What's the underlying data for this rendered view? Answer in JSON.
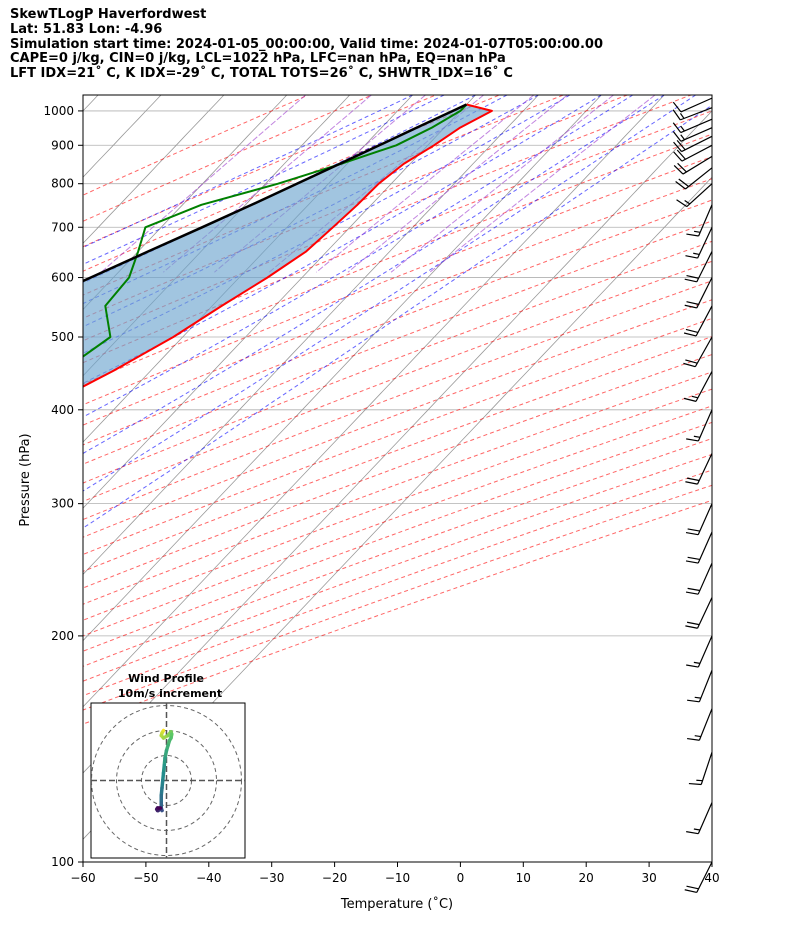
{
  "header": {
    "line1": "SkewTLogP Haverfordwest",
    "line2": "Lat: 51.83   Lon: -4.96",
    "line3": "Simulation start time: 2024-01-05_00:00:00, Valid time: 2024-01-07T05:00:00.00",
    "line4": "CAPE=0 j/kg, CIN=0 j/kg, LCL=1022 hPa, LFC=nan hPa, EQ=nan hPa",
    "line5": "LFT IDX=21˚ C, K IDX=-29˚ C, TOTAL TOTS=26˚ C, SHWTR_IDX=16˚ C"
  },
  "chart_data": {
    "type": "skewt",
    "title": "SkewTLogP Haverfordwest",
    "xlabel": "Temperature (˚C)",
    "ylabel": "Pressure (hPa)",
    "xlim": [
      -60,
      40
    ],
    "ylim": [
      1050,
      100
    ],
    "x_ticks": [
      -60,
      -50,
      -40,
      -30,
      -20,
      -10,
      0,
      10,
      20,
      30,
      40
    ],
    "x_tick_labels": [
      "−60",
      "−50",
      "−40",
      "−30",
      "−20",
      "−10",
      "0",
      "10",
      "20",
      "30",
      "40"
    ],
    "y_ticks": [
      1000,
      900,
      800,
      700,
      600,
      500,
      400,
      300,
      200,
      100
    ],
    "y_tick_labels": [
      "1000",
      "900",
      "800",
      "700",
      "600",
      "500",
      "400",
      "300",
      "200",
      "100"
    ],
    "grid": true,
    "colors": {
      "temperature": "#ff0000",
      "dewpoint": "#008000",
      "parcel": "#000000",
      "cape_fill": "#6fa6cf",
      "dry_adiabat": "#ff0000",
      "moist_adiabat": "#0000ff",
      "isotherm": "#999999",
      "mixing_ratio": "#9933cc"
    },
    "series": [
      {
        "name": "Temperature",
        "p": [
          1020,
          1000,
          950,
          900,
          850,
          800,
          750,
          700,
          650,
          600,
          550,
          500,
          450,
          400,
          350,
          300,
          275,
          250,
          225,
          200,
          180,
          160,
          150,
          140,
          130,
          120,
          110,
          100
        ],
        "t": [
          0.0,
          5.0,
          2.5,
          1.0,
          -1.0,
          -2.0,
          -2.2,
          -2.7,
          -3.3,
          -5.5,
          -8.5,
          -11.5,
          -16.0,
          -22.0,
          -28.0,
          -36.0,
          -41.0,
          -49.0,
          -55.0,
          -61.0,
          -66.0,
          -71.0,
          -73.0,
          -75.0,
          -76.0,
          -77.0,
          -79.0,
          -81.0
        ]
      },
      {
        "name": "Dewpoint",
        "p": [
          1020,
          1000,
          950,
          900,
          850,
          800,
          750,
          700,
          650,
          600,
          550,
          500,
          450,
          400,
          350,
          300,
          250,
          220,
          200,
          180,
          165,
          150,
          130,
          115,
          100
        ],
        "t": [
          0.0,
          0.0,
          -2.0,
          -5.0,
          -11.0,
          -18.0,
          -27.0,
          -32.5,
          -30.0,
          -27.5,
          -27.0,
          -21.5,
          -24.0,
          -29.0,
          -34.5,
          -42.5,
          -53.0,
          -62.0,
          -64.5,
          -70.0,
          -73.0,
          -80.0,
          -85.0,
          -88.5,
          -91.5
        ]
      },
      {
        "name": "Parcel",
        "p": [
          1020,
          1000,
          950,
          900,
          850,
          800,
          750,
          700,
          650,
          600,
          550,
          500,
          450,
          400,
          350,
          300,
          250,
          200,
          150,
          100
        ],
        "t": [
          0.0,
          -1.2,
          -4.4,
          -7.7,
          -11.2,
          -15.0,
          -19.0,
          -23.5,
          -28.4,
          -33.6,
          -39.3,
          -45.6,
          -52.5,
          -60.2,
          -68.8,
          -78.5,
          -89.8,
          -103.0,
          -118.6,
          -138.0
        ]
      }
    ],
    "wind_barbs": {
      "p": [
        1040,
        1010,
        975,
        950,
        925,
        900,
        870,
        840,
        800,
        750,
        700,
        650,
        600,
        550,
        500,
        450,
        400,
        350,
        300,
        275,
        250,
        225,
        200,
        180,
        160,
        140,
        120,
        100
      ],
      "u_kt": [
        9,
        13,
        14,
        16,
        18,
        19,
        18,
        15,
        11,
        6,
        7,
        9,
        9,
        9,
        9,
        8,
        7,
        8,
        8,
        8,
        8,
        8,
        7,
        6,
        6,
        5,
        7,
        9
      ],
      "v_kt": [
        4,
        5,
        6,
        7,
        9,
        10,
        11,
        12,
        10,
        14,
        15,
        18,
        18,
        17,
        16,
        15,
        16,
        17,
        18,
        18,
        18,
        17,
        16,
        15,
        15,
        15,
        16,
        18
      ]
    },
    "hodograph": {
      "title": "Wind Profile",
      "subtitle": "10m/s increment",
      "ring_increment_ms": 10,
      "ring_count": 3,
      "u_ms": [
        2,
        2.5,
        3,
        3.5,
        2,
        -1,
        -3,
        -3.5,
        -3,
        -2,
        -1,
        0,
        1,
        1.5,
        2,
        2.5,
        3,
        3.5,
        3.5,
        3.5,
        3,
        3.5,
        4.5,
        5.5,
        6,
        6.5,
        6,
        5,
        4
      ],
      "v_ms": [
        -20,
        -19.5,
        -19,
        -18,
        -17,
        -18,
        -19.5,
        -18.5,
        -17,
        -16,
        -14,
        -12,
        -9,
        -6,
        -3,
        0,
        3,
        6,
        9,
        11,
        12,
        11.5,
        11.5,
        12,
        12,
        11.5,
        11,
        11,
        11
      ]
    }
  }
}
